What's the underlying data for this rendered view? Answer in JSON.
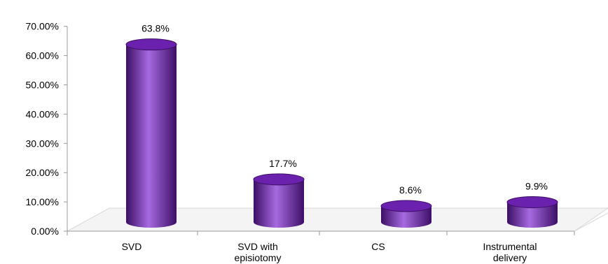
{
  "chart_data": {
    "type": "bar",
    "style": "3d-cylinder",
    "categories": [
      "SVD",
      "SVD  with episiotomy",
      "CS",
      "Instrumental delivery"
    ],
    "values": [
      63.8,
      17.7,
      8.6,
      9.9
    ],
    "data_labels": [
      "63.8%",
      "17.7%",
      "8.6%",
      "9.9%"
    ],
    "category_label_lines": [
      [
        "SVD"
      ],
      [
        "SVD  with",
        "episiotomy"
      ],
      [
        "CS"
      ],
      [
        "Instrumental",
        "delivery"
      ]
    ],
    "y_ticks": [
      "0.00%",
      "10.00%",
      "20.00%",
      "30.00%",
      "40.00%",
      "50.00%",
      "60.00%",
      "70.00%"
    ],
    "ylim": [
      0,
      70
    ],
    "grid": false,
    "legend": "none",
    "colors": {
      "bar": "#7a2dbf",
      "bar_dark": "#3d0f66",
      "bar_light": "#a66ae0",
      "bar_top": "#6a22ae",
      "axis": "#999999",
      "text": "#000000"
    }
  }
}
